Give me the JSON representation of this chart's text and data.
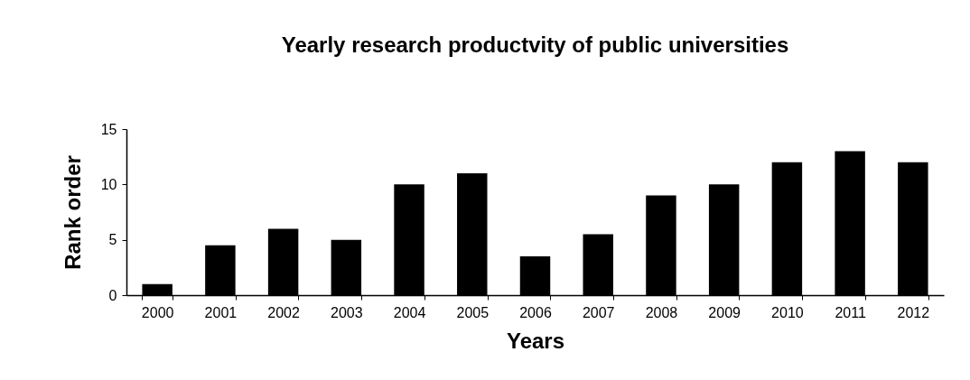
{
  "chart_data": {
    "type": "bar",
    "title": "Yearly research productvity of public universities",
    "xlabel": "Years",
    "ylabel": "Rank order",
    "categories": [
      "2000",
      "2001",
      "2002",
      "2003",
      "2004",
      "2005",
      "2006",
      "2007",
      "2008",
      "2009",
      "2010",
      "2011",
      "2012"
    ],
    "values": [
      1,
      4.5,
      6,
      5,
      10,
      11,
      3.5,
      5.5,
      9,
      10,
      12,
      13,
      12
    ],
    "color": "#000000",
    "ylim": [
      0,
      15
    ],
    "yticks": [
      0,
      5,
      10,
      15
    ],
    "grid": false
  }
}
